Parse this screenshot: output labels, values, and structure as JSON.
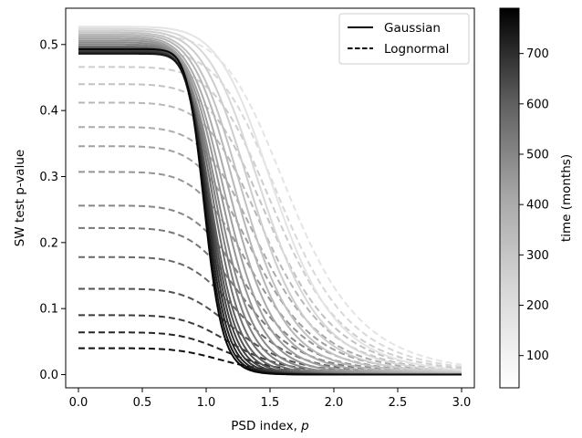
{
  "chart_data": {
    "type": "line",
    "title": "",
    "xlabel": "PSD index, ",
    "xlabel_var": "p",
    "ylabel": "SW test p-value",
    "xlim": [
      -0.1,
      3.1
    ],
    "ylim": [
      -0.02,
      0.555
    ],
    "xticks": [
      0.0,
      0.5,
      1.0,
      1.5,
      2.0,
      2.5,
      3.0
    ],
    "xtick_labels": [
      "0.0",
      "0.5",
      "1.0",
      "1.5",
      "2.0",
      "2.5",
      "3.0"
    ],
    "yticks": [
      0.0,
      0.1,
      0.2,
      0.3,
      0.4,
      0.5
    ],
    "ytick_labels": [
      "0.0",
      "0.1",
      "0.2",
      "0.3",
      "0.4",
      "0.5"
    ],
    "grid": false,
    "legend": {
      "placement": "top-right",
      "entries": [
        {
          "label": "Gaussian",
          "style": "solid"
        },
        {
          "label": "Lognormal",
          "style": "dashed"
        }
      ]
    },
    "colorbar": {
      "label": "time (months)",
      "range": [
        36,
        790
      ],
      "ticks": [
        100,
        200,
        300,
        400,
        500,
        600,
        700
      ],
      "tick_labels": [
        "100",
        "200",
        "300",
        "400",
        "500",
        "600",
        "700"
      ],
      "colormap": "Greys"
    },
    "gaussian_series": [
      {
        "time": 60,
        "plateau": 0.527,
        "p50": 1.56,
        "k": 4.2
      },
      {
        "time": 96,
        "plateau": 0.524,
        "p50": 1.46,
        "k": 4.4
      },
      {
        "time": 132,
        "plateau": 0.521,
        "p50": 1.38,
        "k": 4.7
      },
      {
        "time": 168,
        "plateau": 0.518,
        "p50": 1.31,
        "k": 5.0
      },
      {
        "time": 204,
        "plateau": 0.515,
        "p50": 1.26,
        "k": 5.4
      },
      {
        "time": 240,
        "plateau": 0.512,
        "p50": 1.21,
        "k": 5.8
      },
      {
        "time": 276,
        "plateau": 0.509,
        "p50": 1.17,
        "k": 6.3
      },
      {
        "time": 312,
        "plateau": 0.506,
        "p50": 1.14,
        "k": 6.8
      },
      {
        "time": 348,
        "plateau": 0.503,
        "p50": 1.11,
        "k": 7.4
      },
      {
        "time": 384,
        "plateau": 0.5,
        "p50": 1.09,
        "k": 8.0
      },
      {
        "time": 432,
        "plateau": 0.497,
        "p50": 1.07,
        "k": 8.7
      },
      {
        "time": 480,
        "plateau": 0.495,
        "p50": 1.05,
        "k": 9.4
      },
      {
        "time": 528,
        "plateau": 0.493,
        "p50": 1.04,
        "k": 10.2
      },
      {
        "time": 576,
        "plateau": 0.491,
        "p50": 1.03,
        "k": 11.0
      },
      {
        "time": 624,
        "plateau": 0.489,
        "p50": 1.02,
        "k": 11.8
      },
      {
        "time": 672,
        "plateau": 0.487,
        "p50": 1.01,
        "k": 12.6
      },
      {
        "time": 720,
        "plateau": 0.486,
        "p50": 1.0,
        "k": 13.4
      },
      {
        "time": 768,
        "plateau": 0.493,
        "p50": 0.99,
        "k": 14.2
      }
    ],
    "lognormal_series": [
      {
        "time": 60,
        "plateau": 0.515,
        "p50": 1.68,
        "k": 3.6
      },
      {
        "time": 96,
        "plateau": 0.491,
        "p50": 1.62,
        "k": 3.7
      },
      {
        "time": 132,
        "plateau": 0.466,
        "p50": 1.57,
        "k": 3.8
      },
      {
        "time": 168,
        "plateau": 0.44,
        "p50": 1.52,
        "k": 3.9
      },
      {
        "time": 204,
        "plateau": 0.412,
        "p50": 1.48,
        "k": 4.0
      },
      {
        "time": 240,
        "plateau": 0.375,
        "p50": 1.44,
        "k": 4.1
      },
      {
        "time": 276,
        "plateau": 0.346,
        "p50": 1.4,
        "k": 4.2
      },
      {
        "time": 312,
        "plateau": 0.307,
        "p50": 1.37,
        "k": 4.3
      },
      {
        "time": 360,
        "plateau": 0.256,
        "p50": 1.34,
        "k": 4.4
      },
      {
        "time": 408,
        "plateau": 0.222,
        "p50": 1.31,
        "k": 4.5
      },
      {
        "time": 456,
        "plateau": 0.178,
        "p50": 1.28,
        "k": 4.6
      },
      {
        "time": 528,
        "plateau": 0.13,
        "p50": 1.25,
        "k": 4.7
      },
      {
        "time": 600,
        "plateau": 0.09,
        "p50": 1.22,
        "k": 4.8
      },
      {
        "time": 672,
        "plateau": 0.064,
        "p50": 1.19,
        "k": 4.9
      },
      {
        "time": 744,
        "plateau": 0.04,
        "p50": 1.16,
        "k": 5.0
      }
    ]
  }
}
